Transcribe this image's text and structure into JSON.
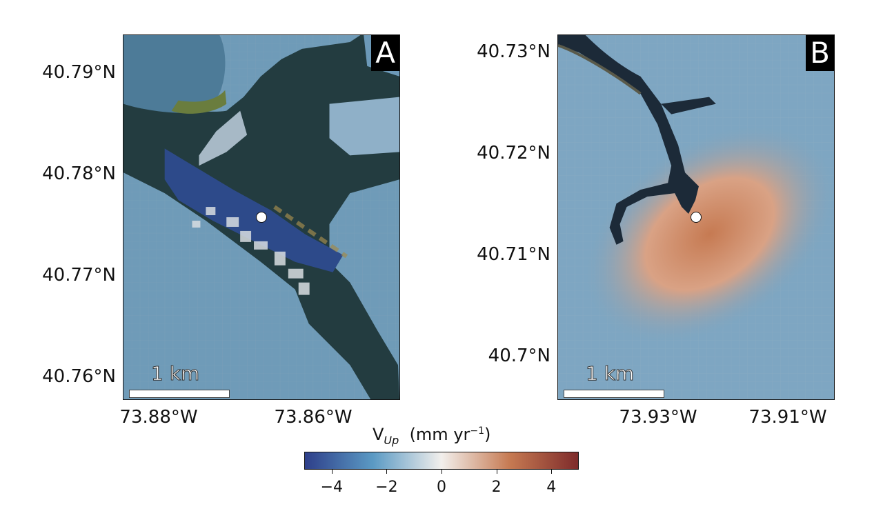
{
  "panels": [
    {
      "letter": "A",
      "y_ticks": [
        "40.79°N",
        "40.78°N",
        "40.77°N",
        "40.76°N"
      ],
      "x_ticks": [
        "73.88°W",
        "73.86°W"
      ],
      "scale_label": "1 km"
    },
    {
      "letter": "B",
      "y_ticks": [
        "40.73°N",
        "40.72°N",
        "40.71°N",
        "40.7°N"
      ],
      "x_ticks": [
        "73.93°W",
        "73.91°W"
      ],
      "scale_label": "1 km"
    }
  ],
  "colorbar": {
    "label_main": "V",
    "label_sub": "Up",
    "label_units_pre": "(mm yr",
    "label_units_sup": "−1",
    "label_units_post": ")",
    "ticks": [
      "−4",
      "−2",
      "0",
      "2",
      "4"
    ],
    "range": [
      -5,
      5
    ],
    "colors": {
      "low": "#2e3f8a",
      "mid_low": "#5b9ac4",
      "mid": "#f2efec",
      "mid_high": "#c67a52",
      "high": "#7e2b2b"
    }
  }
}
